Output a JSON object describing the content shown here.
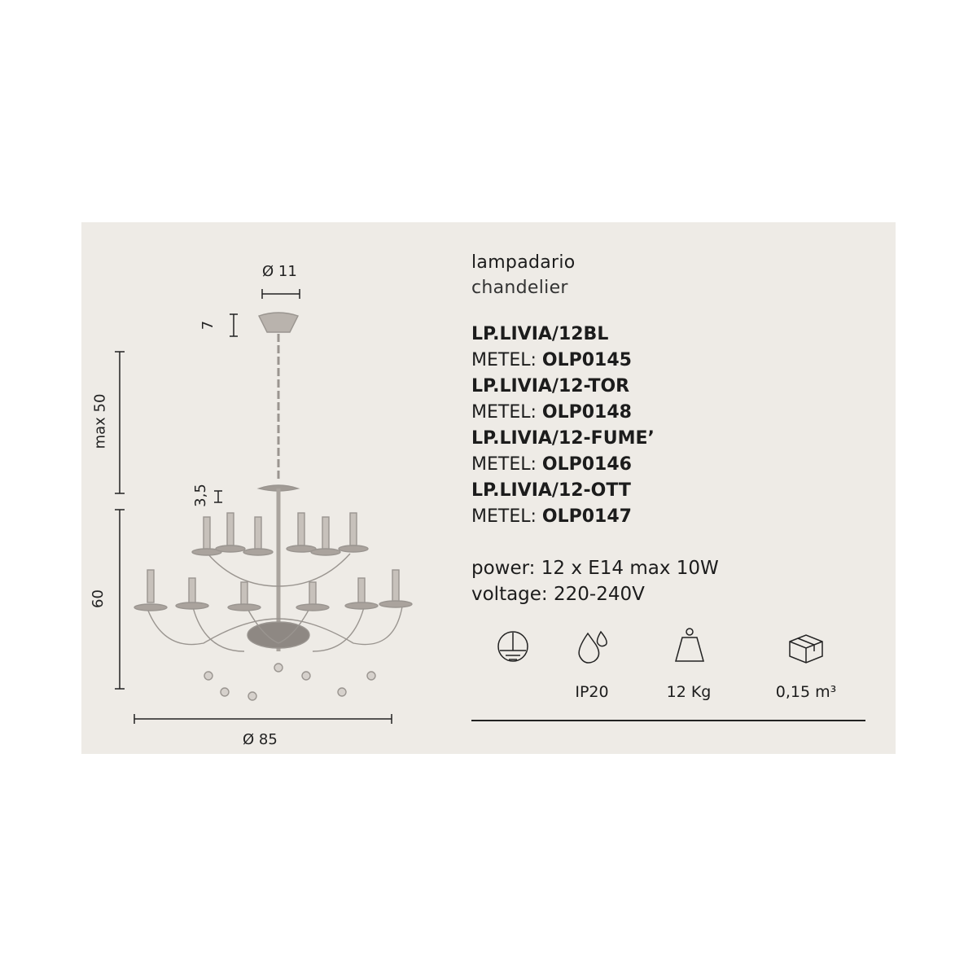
{
  "dimensions": {
    "top_diameter": "Ø 11",
    "canopy_height": "7",
    "chain_length": "max 50",
    "body_height": "60",
    "candle_height": "3,5",
    "diameter": "Ø 85"
  },
  "title_it": "lampadario",
  "title_en": "chandelier",
  "codes": [
    {
      "model": "LP.LIVIA/12BL",
      "metel_label": "METEL:",
      "metel": "OLP0145"
    },
    {
      "model": "LP.LIVIA/12-TOR",
      "metel_label": "METEL:",
      "metel": "OLP0148"
    },
    {
      "model": "LP.LIVIA/12-FUME’",
      "metel_label": "METEL:",
      "metel": "OLP0146"
    },
    {
      "model": "LP.LIVIA/12-OTT",
      "metel_label": "METEL:",
      "metel": "OLP0147"
    }
  ],
  "power": "power: 12 x E14 max 10W",
  "voltage": "voltage: 220-240V",
  "icons": [
    {
      "icon": "ground-icon",
      "label": ""
    },
    {
      "icon": "water-drops-icon",
      "label": "IP20"
    },
    {
      "icon": "weight-icon",
      "label": "12 Kg"
    },
    {
      "icon": "box-icon",
      "label": "0,15 m³"
    }
  ],
  "colors": {
    "panel": "#eeebe6",
    "text": "#1c1c1c"
  }
}
